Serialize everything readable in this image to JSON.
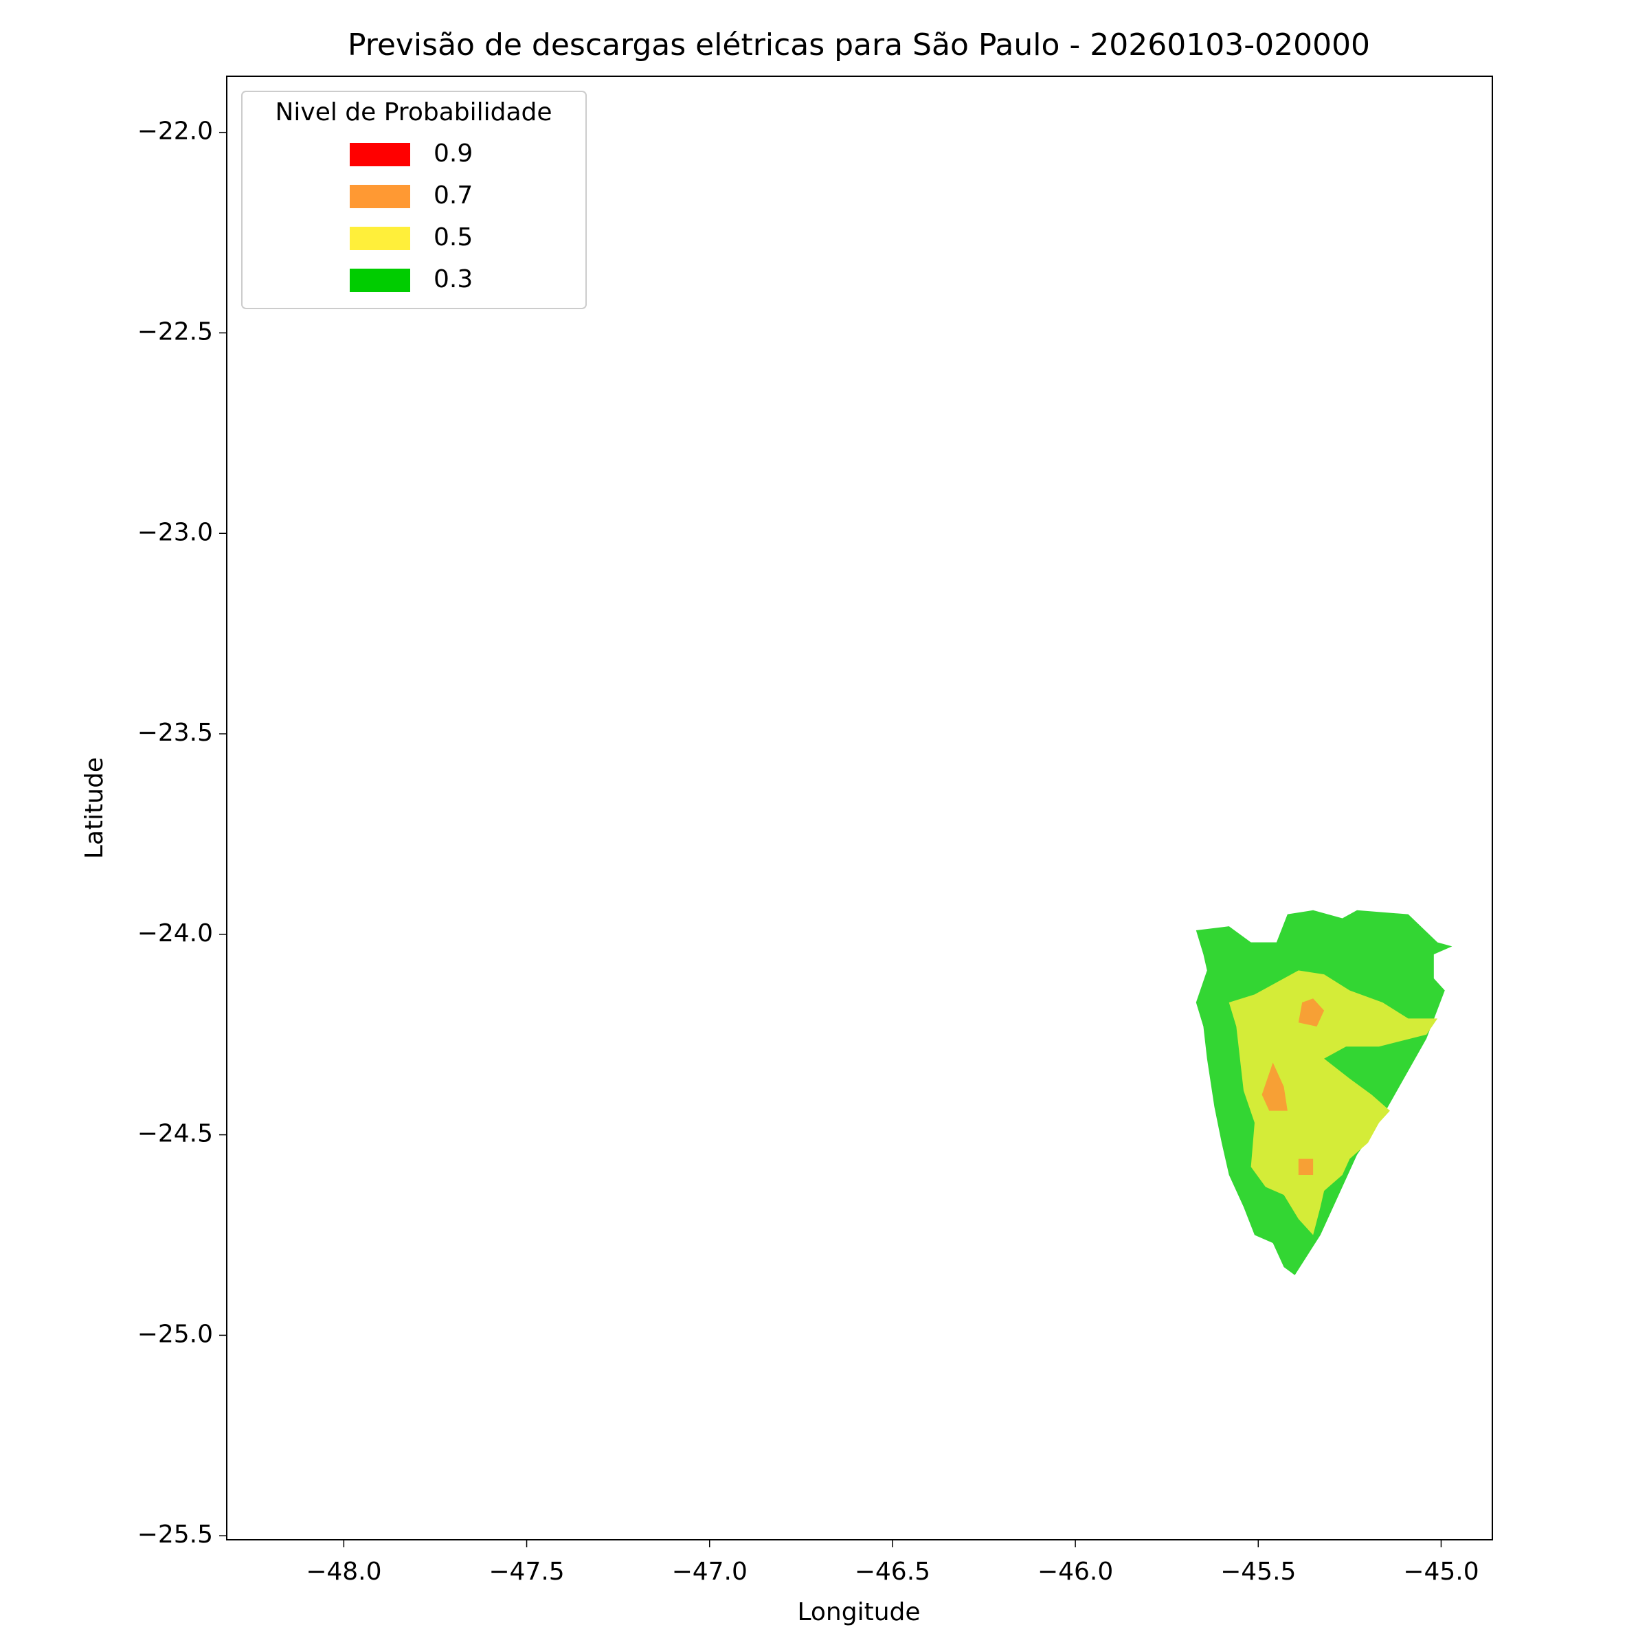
{
  "chart_data": {
    "type": "map",
    "title": "Previsão de descargas elétricas para São Paulo - 20260103-020000",
    "x_label": "Longitude",
    "y_label": "Latitude",
    "xlim": [
      -48.32,
      -44.86
    ],
    "ylim": [
      -25.51,
      -21.86
    ],
    "xticks": [
      {
        "value": -48,
        "label": "−48.0"
      },
      {
        "value": -47.5,
        "label": "−47.5"
      },
      {
        "value": -47,
        "label": "−47.0"
      },
      {
        "value": -46.5,
        "label": "−46.5"
      },
      {
        "value": -46,
        "label": "−46.0"
      },
      {
        "value": -45.5,
        "label": "−45.5"
      },
      {
        "value": -45,
        "label": "−45.0"
      }
    ],
    "yticks": [
      {
        "value": -22,
        "label": "−22.0"
      },
      {
        "value": -22.5,
        "label": "−22.5"
      },
      {
        "value": -23,
        "label": "−23.0"
      },
      {
        "value": -23.5,
        "label": "−23.5"
      },
      {
        "value": -24,
        "label": "−24.0"
      },
      {
        "value": -24.5,
        "label": "−24.5"
      },
      {
        "value": -25,
        "label": "−25.0"
      },
      {
        "value": -25.5,
        "label": "−25.5"
      }
    ],
    "legend": {
      "title": "Nivel de Probabilidade",
      "position": "upper left",
      "levels": [
        {
          "value": 0.9,
          "color": "#ff0000"
        },
        {
          "value": 0.7,
          "color": "#ff9933"
        },
        {
          "value": 0.5,
          "color": "#ffef3a"
        },
        {
          "value": 0.3,
          "color": "#00cc00"
        }
      ]
    },
    "regions": [
      {
        "level": 0.3,
        "color": "#33d633",
        "points": [
          [
            -45.67,
            -23.99
          ],
          [
            -45.58,
            -23.98
          ],
          [
            -45.52,
            -24.02
          ],
          [
            -45.45,
            -24.02
          ],
          [
            -45.42,
            -23.95
          ],
          [
            -45.35,
            -23.94
          ],
          [
            -45.27,
            -23.96
          ],
          [
            -45.23,
            -23.94
          ],
          [
            -45.09,
            -23.95
          ],
          [
            -45.01,
            -24.02
          ],
          [
            -44.97,
            -24.03
          ],
          [
            -45.02,
            -24.05
          ],
          [
            -45.02,
            -24.11
          ],
          [
            -44.99,
            -24.14
          ],
          [
            -45.04,
            -24.26
          ],
          [
            -45.17,
            -24.47
          ],
          [
            -45.23,
            -24.55
          ],
          [
            -45.27,
            -24.63
          ],
          [
            -45.33,
            -24.75
          ],
          [
            -45.4,
            -24.85
          ],
          [
            -45.43,
            -24.83
          ],
          [
            -45.46,
            -24.77
          ],
          [
            -45.51,
            -24.75
          ],
          [
            -45.54,
            -24.68
          ],
          [
            -45.58,
            -24.6
          ],
          [
            -45.6,
            -24.52
          ],
          [
            -45.62,
            -24.43
          ],
          [
            -45.64,
            -24.31
          ],
          [
            -45.65,
            -24.23
          ],
          [
            -45.67,
            -24.17
          ],
          [
            -45.64,
            -24.09
          ],
          [
            -45.65,
            -24.05
          ]
        ]
      },
      {
        "level": 0.5,
        "color": "#d4ec38",
        "points": [
          [
            -45.58,
            -24.17
          ],
          [
            -45.51,
            -24.15
          ],
          [
            -45.39,
            -24.09
          ],
          [
            -45.32,
            -24.1
          ],
          [
            -45.25,
            -24.14
          ],
          [
            -45.16,
            -24.17
          ],
          [
            -45.09,
            -24.21
          ],
          [
            -45.01,
            -24.21
          ],
          [
            -45.04,
            -24.25
          ],
          [
            -45.17,
            -24.28
          ],
          [
            -45.26,
            -24.28
          ],
          [
            -45.32,
            -24.31
          ],
          [
            -45.25,
            -24.36
          ],
          [
            -45.19,
            -24.4
          ],
          [
            -45.14,
            -24.44
          ],
          [
            -45.17,
            -24.47
          ],
          [
            -45.2,
            -24.52
          ],
          [
            -45.25,
            -24.56
          ],
          [
            -45.27,
            -24.6
          ],
          [
            -45.32,
            -24.64
          ],
          [
            -45.33,
            -24.68
          ],
          [
            -45.35,
            -24.75
          ],
          [
            -45.39,
            -24.71
          ],
          [
            -45.43,
            -24.65
          ],
          [
            -45.48,
            -24.63
          ],
          [
            -45.52,
            -24.58
          ],
          [
            -45.51,
            -24.47
          ],
          [
            -45.54,
            -24.39
          ],
          [
            -45.55,
            -24.31
          ],
          [
            -45.56,
            -24.23
          ]
        ]
      },
      {
        "level": 0.7,
        "color": "#f7a035",
        "points": [
          [
            -45.38,
            -24.17
          ],
          [
            -45.35,
            -24.16
          ],
          [
            -45.32,
            -24.19
          ],
          [
            -45.34,
            -24.23
          ],
          [
            -45.39,
            -24.22
          ]
        ]
      },
      {
        "level": 0.7,
        "color": "#f7a035",
        "points": [
          [
            -45.46,
            -24.32
          ],
          [
            -45.43,
            -24.38
          ],
          [
            -45.42,
            -24.44
          ],
          [
            -45.47,
            -24.44
          ],
          [
            -45.49,
            -24.4
          ]
        ]
      },
      {
        "level": 0.7,
        "color": "#f7a035",
        "points": [
          [
            -45.39,
            -24.56
          ],
          [
            -45.35,
            -24.56
          ],
          [
            -45.35,
            -24.6
          ],
          [
            -45.39,
            -24.6
          ]
        ]
      }
    ]
  }
}
